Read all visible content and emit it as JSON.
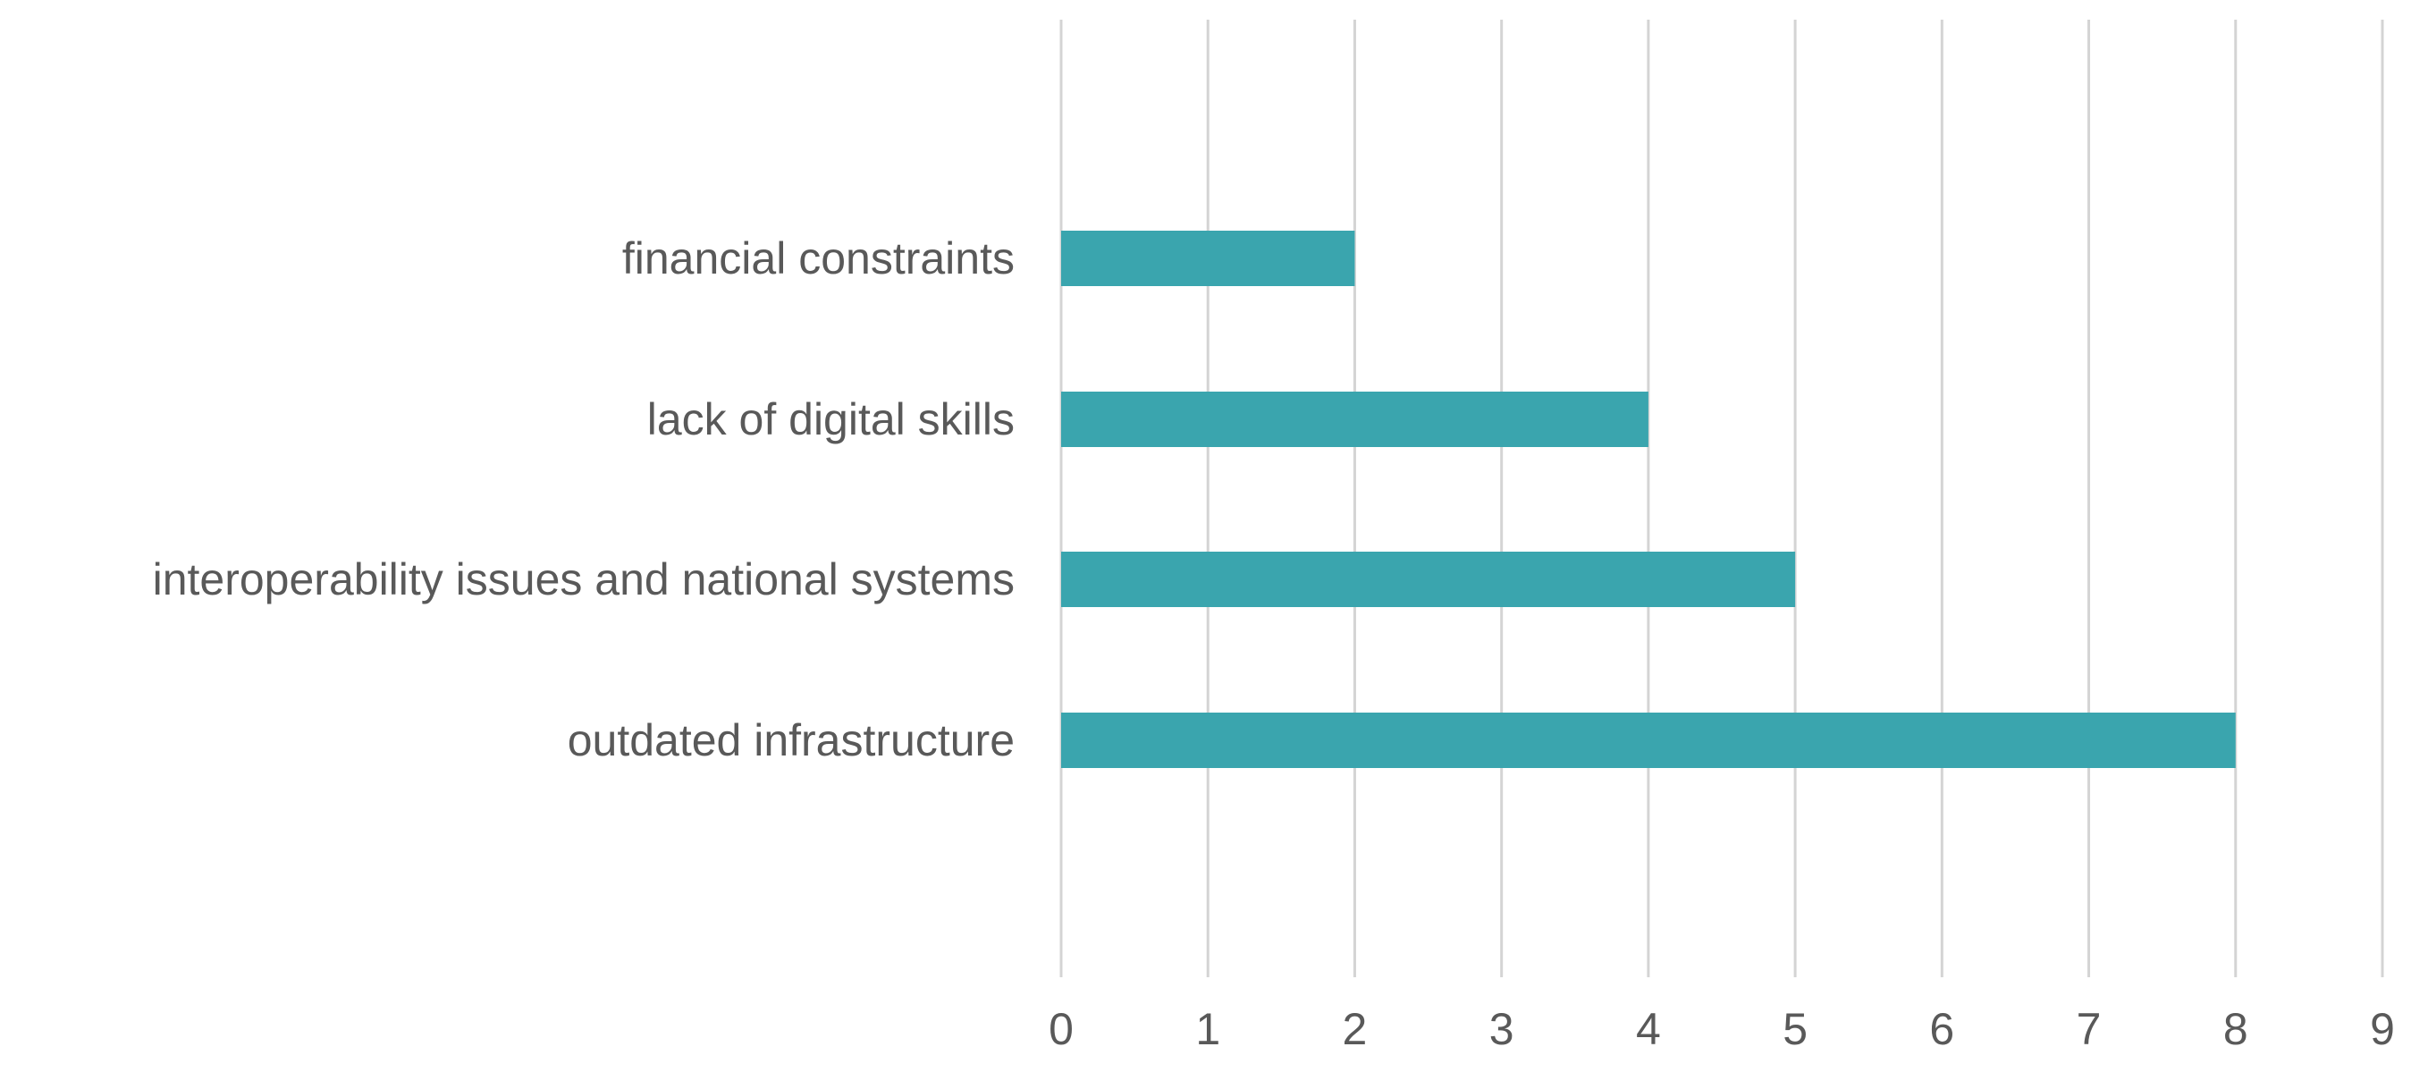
{
  "chart_data": {
    "type": "bar",
    "orientation": "horizontal",
    "categories": [
      "financial constraints",
      "lack of digital skills",
      "interoperability issues and national systems",
      "outdated infrastructure"
    ],
    "values": [
      2,
      4,
      5,
      8
    ],
    "xlim": [
      0,
      9
    ],
    "x_ticks": [
      "0",
      "1",
      "2",
      "3",
      "4",
      "5",
      "6",
      "7",
      "8",
      "9"
    ],
    "grid": true,
    "legend": "none",
    "bar_color": "#3aa5ae",
    "grid_color": "#d4d4d4",
    "text_color": "#595959"
  }
}
